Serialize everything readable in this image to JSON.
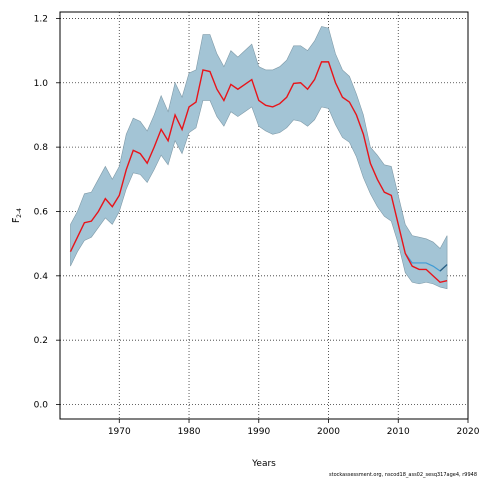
{
  "chart_data": {
    "type": "line",
    "xlabel": "Years",
    "ylabel_main": "F",
    "ylabel_sub": "2-4",
    "xlim": [
      1961.5,
      2020
    ],
    "ylim": [
      -0.045,
      1.22
    ],
    "xticks": [
      1970,
      1980,
      1990,
      2000,
      2010,
      2020
    ],
    "yticks": [
      0.0,
      0.2,
      0.4,
      0.6,
      0.8,
      1.0,
      1.2
    ],
    "grid": true,
    "colors": {
      "band": "#a3c4d5",
      "band_edge": "#7f9aa8",
      "estimate": "#e8141a",
      "forecast": "#3f9bd5",
      "forecast_dark": "#2b5e80"
    },
    "x": [
      1963,
      1964,
      1965,
      1966,
      1967,
      1968,
      1969,
      1970,
      1971,
      1972,
      1973,
      1974,
      1975,
      1976,
      1977,
      1978,
      1979,
      1980,
      1981,
      1982,
      1983,
      1984,
      1985,
      1986,
      1987,
      1988,
      1989,
      1990,
      1991,
      1992,
      1993,
      1994,
      1995,
      1996,
      1997,
      1998,
      1999,
      2000,
      2001,
      2002,
      2003,
      2004,
      2005,
      2006,
      2007,
      2008,
      2009,
      2010,
      2011,
      2012,
      2013,
      2014,
      2015,
      2016,
      2017
    ],
    "series": [
      {
        "role": "estimate",
        "values": [
          0.475,
          0.52,
          0.565,
          0.57,
          0.6,
          0.64,
          0.615,
          0.65,
          0.73,
          0.79,
          0.78,
          0.75,
          0.8,
          0.855,
          0.82,
          0.9,
          0.855,
          0.925,
          0.94,
          1.04,
          1.035,
          0.98,
          0.945,
          0.995,
          0.98,
          0.995,
          1.01,
          0.945,
          0.93,
          0.925,
          0.935,
          0.955,
          0.998,
          1.0,
          0.98,
          1.01,
          1.065,
          1.065,
          1.0,
          0.955,
          0.94,
          0.9,
          0.84,
          0.75,
          0.7,
          0.66,
          0.65,
          0.56,
          0.47,
          0.43,
          0.42,
          0.42,
          0.4,
          0.38,
          0.385
        ],
        "lower": [
          0.43,
          0.475,
          0.51,
          0.52,
          0.55,
          0.58,
          0.56,
          0.6,
          0.67,
          0.72,
          0.715,
          0.69,
          0.73,
          0.775,
          0.745,
          0.82,
          0.78,
          0.845,
          0.86,
          0.945,
          0.945,
          0.895,
          0.865,
          0.91,
          0.895,
          0.91,
          0.925,
          0.865,
          0.85,
          0.84,
          0.845,
          0.86,
          0.885,
          0.88,
          0.865,
          0.885,
          0.925,
          0.92,
          0.87,
          0.83,
          0.815,
          0.77,
          0.705,
          0.655,
          0.615,
          0.585,
          0.57,
          0.5,
          0.41,
          0.38,
          0.375,
          0.38,
          0.375,
          0.365,
          0.36
        ],
        "upper": [
          0.56,
          0.6,
          0.655,
          0.66,
          0.7,
          0.74,
          0.7,
          0.74,
          0.84,
          0.89,
          0.88,
          0.85,
          0.9,
          0.96,
          0.91,
          1.0,
          0.955,
          1.03,
          1.04,
          1.15,
          1.15,
          1.09,
          1.05,
          1.1,
          1.08,
          1.1,
          1.12,
          1.05,
          1.04,
          1.04,
          1.05,
          1.07,
          1.115,
          1.115,
          1.1,
          1.13,
          1.175,
          1.17,
          1.09,
          1.04,
          1.02,
          0.965,
          0.9,
          0.8,
          0.775,
          0.745,
          0.74,
          0.65,
          0.56,
          0.525,
          0.52,
          0.515,
          0.505,
          0.485,
          0.525
        ]
      },
      {
        "role": "forecast",
        "x": [
          2011,
          2012,
          2013,
          2014,
          2015,
          2016,
          2017
        ],
        "values": [
          0.47,
          0.44,
          0.44,
          0.44,
          0.43,
          0.415,
          0.435
        ]
      }
    ]
  },
  "footer_text": "stockassessment.org, nscod18_ass02_sesq317age4, r9948"
}
